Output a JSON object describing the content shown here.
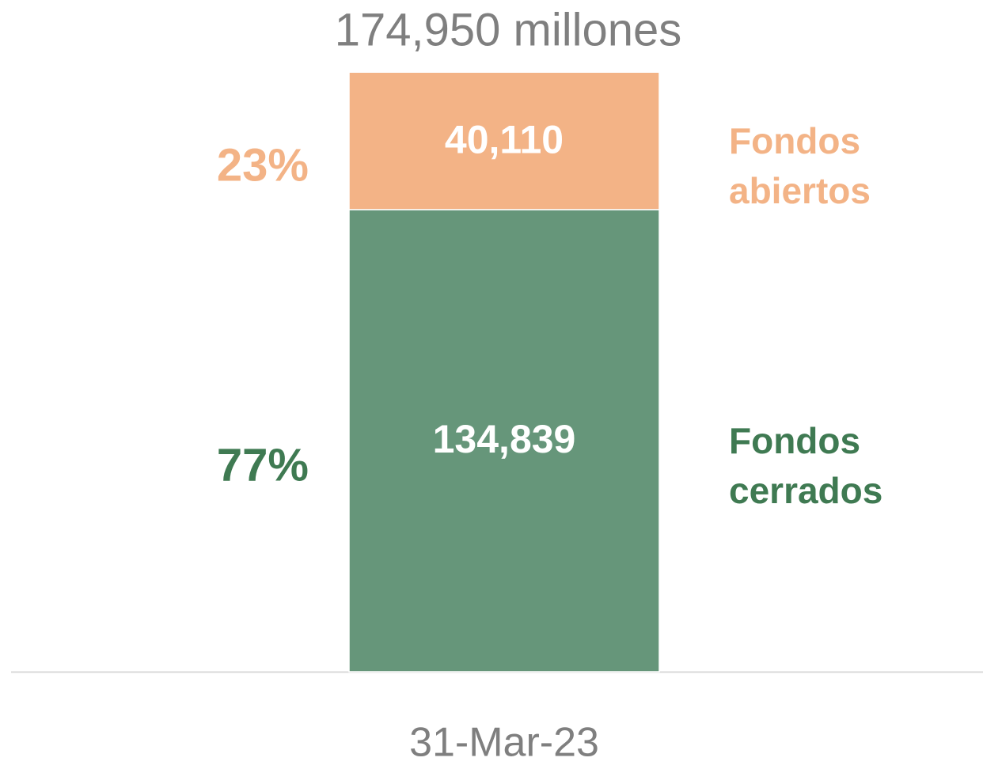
{
  "chart_data": {
    "type": "stacked_bar",
    "title": "174,950 millones",
    "categories": [
      "31-Mar-23"
    ],
    "series": [
      {
        "name": "Fondos cerrados",
        "color": "#66967a",
        "text_color": "#3f7a52",
        "values": [
          134839
        ],
        "value_labels": [
          "134,839"
        ],
        "percent_labels": [
          "77%"
        ]
      },
      {
        "name": "Fondos abiertos",
        "color": "#f3b386",
        "text_color": "#f3b386",
        "values": [
          40110
        ],
        "value_labels": [
          "40,110"
        ],
        "percent_labels": [
          "23%"
        ]
      }
    ],
    "ylim": [
      0,
      175000
    ]
  }
}
